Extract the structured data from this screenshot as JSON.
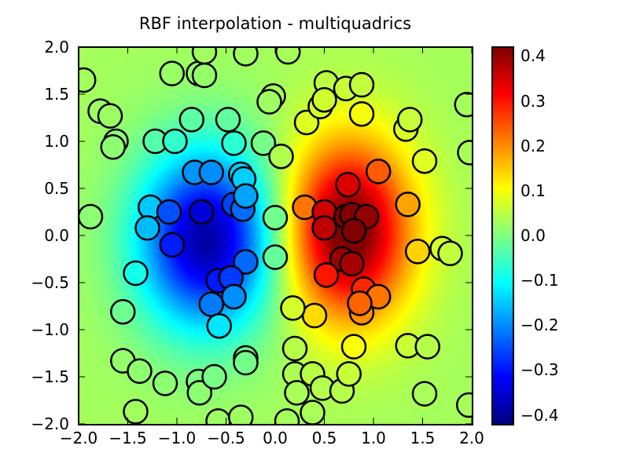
{
  "chart_data": {
    "type": "heatmap",
    "title": "RBF interpolation - multiquadrics",
    "xlabel": "",
    "ylabel": "",
    "xlim": [
      -2.0,
      2.0
    ],
    "ylim": [
      -2.0,
      2.0
    ],
    "grid": false,
    "colormap": "jet",
    "colorbar": {
      "vmin": -0.42,
      "vmax": 0.42,
      "ticks": [
        0.4,
        0.3,
        0.2,
        0.1,
        0.0,
        -0.1,
        -0.2,
        -0.3,
        -0.4
      ],
      "tick_labels": [
        "0.4",
        "0.3",
        "0.2",
        "0.1",
        "0.0",
        "−0.1",
        "−0.2",
        "−0.3",
        "−0.4"
      ]
    },
    "xticks": [
      -2.0,
      -1.5,
      -1.0,
      -0.5,
      0.0,
      0.5,
      1.0,
      1.5,
      2.0
    ],
    "xtick_labels": [
      "−2.0",
      "−1.5",
      "−1.0",
      "−0.5",
      "0.0",
      "0.5",
      "1.0",
      "1.5",
      "2.0"
    ],
    "yticks": [
      2.0,
      1.5,
      1.0,
      0.5,
      0.0,
      -0.5,
      -1.0,
      -1.5,
      -2.0
    ],
    "ytick_labels": [
      "2.0",
      "1.5",
      "1.0",
      "0.5",
      "0.0",
      "−0.5",
      "−1.0",
      "−1.5",
      "−2.0"
    ],
    "field": {
      "description": "Interpolated surface: negative lobe centered near (-0.7, 0.0), positive lobe near (0.75, 0.1)",
      "neg_lobe": {
        "x": -0.7,
        "y": -0.05,
        "amp": -0.42,
        "sx": 0.55,
        "sy": 0.75
      },
      "pos_lobe": {
        "x": 0.75,
        "y": 0.05,
        "amp": 0.42,
        "sx": 0.5,
        "sy": 0.75
      }
    },
    "points": [
      [
        -1.95,
        1.65
      ],
      [
        -1.78,
        1.32
      ],
      [
        -1.68,
        1.27
      ],
      [
        -1.62,
        1.0
      ],
      [
        -1.65,
        0.94
      ],
      [
        -1.22,
        1.0
      ],
      [
        -1.05,
        1.72
      ],
      [
        -0.78,
        1.72
      ],
      [
        -0.72,
        1.7
      ],
      [
        -0.72,
        1.95
      ],
      [
        -0.3,
        1.93
      ],
      [
        0.13,
        1.95
      ],
      [
        -0.48,
        1.23
      ],
      [
        -0.85,
        1.23
      ],
      [
        -1.02,
        1.0
      ],
      [
        -0.42,
        0.98
      ],
      [
        -0.12,
        0.98
      ],
      [
        -0.02,
        1.48
      ],
      [
        -0.06,
        1.42
      ],
      [
        0.06,
        0.84
      ],
      [
        -1.88,
        0.2
      ],
      [
        -0.82,
        0.67
      ],
      [
        -0.65,
        0.67
      ],
      [
        -0.35,
        0.65
      ],
      [
        -0.32,
        0.6
      ],
      [
        -1.27,
        0.3
      ],
      [
        -1.08,
        0.25
      ],
      [
        -0.75,
        0.25
      ],
      [
        -0.42,
        0.33
      ],
      [
        -0.33,
        0.28
      ],
      [
        -0.3,
        0.42
      ],
      [
        -1.3,
        0.08
      ],
      [
        -1.05,
        -0.1
      ],
      [
        -0.3,
        -0.28
      ],
      [
        -0.58,
        -0.48
      ],
      [
        -0.45,
        -0.45
      ],
      [
        -0.42,
        -0.65
      ],
      [
        -0.65,
        -0.73
      ],
      [
        -0.57,
        -0.96
      ],
      [
        -1.42,
        -0.4
      ],
      [
        -1.55,
        -0.81
      ],
      [
        0.0,
        0.19
      ],
      [
        0.3,
        0.3
      ],
      [
        0.5,
        0.25
      ],
      [
        0.5,
        0.08
      ],
      [
        0.74,
        0.54
      ],
      [
        0.72,
        0.2
      ],
      [
        0.78,
        0.22
      ],
      [
        0.93,
        0.2
      ],
      [
        0.8,
        0.05
      ],
      [
        0.68,
        -0.25
      ],
      [
        0.78,
        -0.3
      ],
      [
        0.52,
        -0.42
      ],
      [
        0.9,
        -0.57
      ],
      [
        1.05,
        -0.65
      ],
      [
        0.88,
        -0.82
      ],
      [
        0.86,
        -0.72
      ],
      [
        0.4,
        -0.85
      ],
      [
        1.05,
        0.68
      ],
      [
        1.35,
        0.33
      ],
      [
        1.45,
        -0.17
      ],
      [
        1.7,
        -0.14
      ],
      [
        1.78,
        -0.19
      ],
      [
        1.52,
        0.79
      ],
      [
        0.0,
        -0.23
      ],
      [
        0.32,
        1.2
      ],
      [
        0.46,
        1.37
      ],
      [
        0.52,
        1.62
      ],
      [
        0.5,
        1.44
      ],
      [
        0.72,
        1.56
      ],
      [
        0.88,
        1.6
      ],
      [
        0.88,
        1.29
      ],
      [
        1.33,
        1.13
      ],
      [
        1.37,
        1.23
      ],
      [
        1.95,
        1.39
      ],
      [
        1.98,
        0.88
      ],
      [
        0.18,
        -0.77
      ],
      [
        0.2,
        -1.2
      ],
      [
        0.2,
        -1.47
      ],
      [
        0.38,
        -1.47
      ],
      [
        0.22,
        -1.67
      ],
      [
        0.48,
        -1.62
      ],
      [
        0.38,
        -1.88
      ],
      [
        0.68,
        -1.65
      ],
      [
        0.75,
        -1.47
      ],
      [
        0.8,
        -1.18
      ],
      [
        1.35,
        -1.17
      ],
      [
        1.55,
        -1.18
      ],
      [
        1.52,
        -1.68
      ],
      [
        1.97,
        -1.8
      ],
      [
        0.12,
        -1.97
      ],
      [
        -1.55,
        -1.33
      ],
      [
        -1.38,
        -1.44
      ],
      [
        -1.12,
        -1.57
      ],
      [
        -0.78,
        -1.55
      ],
      [
        -0.77,
        -1.67
      ],
      [
        -0.62,
        -1.5
      ],
      [
        -0.3,
        -1.3
      ],
      [
        -0.3,
        -1.35
      ],
      [
        -1.42,
        -1.87
      ],
      [
        -0.58,
        -1.97
      ],
      [
        -0.35,
        -1.93
      ]
    ]
  }
}
